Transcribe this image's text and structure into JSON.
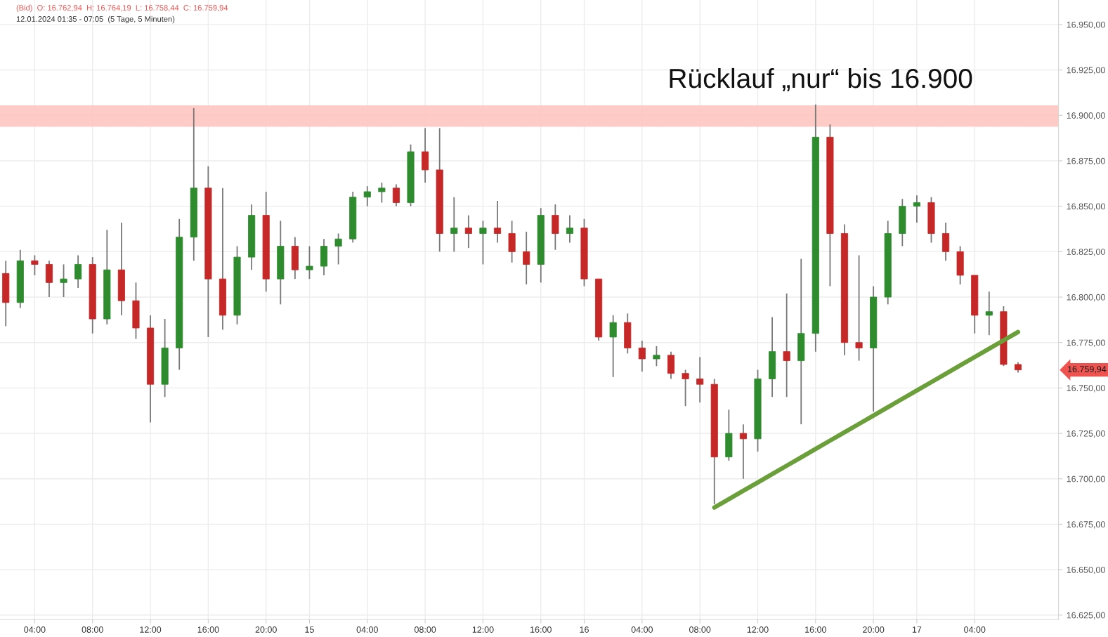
{
  "chart_data": {
    "type": "candlestick",
    "title": "(Bid)  O: 16.762,94  H: 16.764,19  L: 16.758,44  C: 16.759,94",
    "subtitle": "12.01.2024 01:35 - 07:05  (5 Tage, 5 Minuten)",
    "categories": [
      null,
      null,
      "04:00",
      null,
      null,
      null,
      "08:00",
      null,
      null,
      null,
      "12:00",
      null,
      null,
      null,
      "16:00",
      null,
      null,
      null,
      "20:00",
      null,
      null,
      "15",
      null,
      null,
      null,
      "04:00",
      null,
      null,
      null,
      "08:00",
      null,
      null,
      null,
      "12:00",
      null,
      null,
      null,
      "16:00",
      null,
      null,
      "16",
      null,
      null,
      null,
      "04:00",
      null,
      null,
      null,
      "08:00",
      null,
      null,
      null,
      "12:00",
      null,
      null,
      null,
      "16:00",
      null,
      null,
      null,
      "20:00",
      null,
      null,
      "17",
      null,
      null,
      null,
      "04:00",
      null,
      null,
      null
    ],
    "ohlc": [
      [
        16813,
        16820,
        16784,
        16797
      ],
      [
        16797,
        16826,
        16794,
        16820
      ],
      [
        16820,
        16823,
        16812,
        16818
      ],
      [
        16818,
        16820,
        16800,
        16808
      ],
      [
        16808,
        16818,
        16800,
        16810
      ],
      [
        16810,
        16823,
        16805,
        16818
      ],
      [
        16818,
        16822,
        16780,
        16788
      ],
      [
        16788,
        16837,
        16785,
        16815
      ],
      [
        16815,
        16841,
        16790,
        16798
      ],
      [
        16798,
        16808,
        16777,
        16783
      ],
      [
        16783,
        16790,
        16731,
        16752
      ],
      [
        16752,
        16788,
        16745,
        16772
      ],
      [
        16772,
        16843,
        16760,
        16833
      ],
      [
        16833,
        16904,
        16820,
        16860
      ],
      [
        16860,
        16872,
        16778,
        16810
      ],
      [
        16810,
        16860,
        16782,
        16790
      ],
      [
        16790,
        16828,
        16785,
        16822
      ],
      [
        16822,
        16851,
        16815,
        16845
      ],
      [
        16845,
        16858,
        16803,
        16810
      ],
      [
        16810,
        16842,
        16796,
        16828
      ],
      [
        16828,
        16833,
        16810,
        16815
      ],
      [
        16815,
        16828,
        16810,
        16817
      ],
      [
        16817,
        16832,
        16812,
        16828
      ],
      [
        16828,
        16835,
        16818,
        16832
      ],
      [
        16832,
        16858,
        16830,
        16855
      ],
      [
        16855,
        16861,
        16850,
        16858
      ],
      [
        16858,
        16863,
        16852,
        16860
      ],
      [
        16860,
        16862,
        16850,
        16852
      ],
      [
        16852,
        16884,
        16850,
        16880
      ],
      [
        16880,
        16893,
        16863,
        16870
      ],
      [
        16870,
        16893,
        16825,
        16835
      ],
      [
        16835,
        16855,
        16825,
        16838
      ],
      [
        16838,
        16845,
        16827,
        16835
      ],
      [
        16835,
        16842,
        16818,
        16838
      ],
      [
        16838,
        16853,
        16830,
        16835
      ],
      [
        16835,
        16842,
        16819,
        16825
      ],
      [
        16825,
        16836,
        16807,
        16818
      ],
      [
        16818,
        16849,
        16808,
        16845
      ],
      [
        16845,
        16851,
        16826,
        16835
      ],
      [
        16835,
        16845,
        16830,
        16838
      ],
      [
        16838,
        16843,
        16806,
        16810
      ],
      [
        16810,
        16810,
        16776,
        16778
      ],
      [
        16778,
        16790,
        16756,
        16786
      ],
      [
        16786,
        16791,
        16769,
        16772
      ],
      [
        16772,
        16776,
        16759,
        16766
      ],
      [
        16766,
        16773,
        16762,
        16768
      ],
      [
        16768,
        16770,
        16755,
        16758
      ],
      [
        16758,
        16760,
        16740,
        16755
      ],
      [
        16755,
        16767,
        16742,
        16752
      ],
      [
        16752,
        16755,
        16686,
        16712
      ],
      [
        16712,
        16738,
        16710,
        16725
      ],
      [
        16725,
        16730,
        16700,
        16722
      ],
      [
        16722,
        16760,
        16715,
        16755
      ],
      [
        16755,
        16789,
        16745,
        16770
      ],
      [
        16770,
        16802,
        16745,
        16765
      ],
      [
        16765,
        16821,
        16730,
        16780
      ],
      [
        16780,
        16906,
        16770,
        16888
      ],
      [
        16888,
        16895,
        16806,
        16835
      ],
      [
        16835,
        16840,
        16768,
        16775
      ],
      [
        16775,
        16823,
        16765,
        16772
      ],
      [
        16772,
        16806,
        16737,
        16800
      ],
      [
        16800,
        16842,
        16796,
        16835
      ],
      [
        16835,
        16854,
        16828,
        16850
      ],
      [
        16850,
        16856,
        16841,
        16852
      ],
      [
        16852,
        16855,
        16830,
        16835
      ],
      [
        16835,
        16841,
        16820,
        16825
      ],
      [
        16825,
        16828,
        16807,
        16812
      ],
      [
        16812,
        16812,
        16780,
        16790
      ],
      [
        16790,
        16803,
        16779,
        16792
      ],
      [
        16792,
        16795,
        16762,
        16762.94
      ],
      [
        16762.94,
        16764.19,
        16758.44,
        16759.94
      ]
    ],
    "color": "#787878",
    "colors": [
      "#c62828",
      "#2e8b2e",
      "#c62828",
      "#c62828",
      "#2e8b2e",
      "#2e8b2e",
      "#c62828",
      "#2e8b2e",
      "#c62828",
      "#c62828",
      "#c62828",
      "#2e8b2e",
      "#2e8b2e",
      "#2e8b2e",
      "#c62828",
      "#c62828",
      "#2e8b2e",
      "#2e8b2e",
      "#c62828",
      "#2e8b2e",
      "#c62828",
      "#2e8b2e",
      "#2e8b2e",
      "#2e8b2e",
      "#2e8b2e",
      "#2e8b2e",
      "#2e8b2e",
      "#c62828",
      "#2e8b2e",
      "#c62828",
      "#c62828",
      "#2e8b2e",
      "#c62828",
      "#2e8b2e",
      "#c62828",
      "#c62828",
      "#c62828",
      "#2e8b2e",
      "#c62828",
      "#2e8b2e",
      "#c62828",
      "#c62828",
      "#2e8b2e",
      "#c62828",
      "#c62828",
      "#2e8b2e",
      "#c62828",
      "#c62828",
      "#c62828",
      "#c62828",
      "#2e8b2e",
      "#c62828",
      "#2e8b2e",
      "#2e8b2e",
      "#c62828",
      "#2e8b2e",
      "#2e8b2e",
      "#c62828",
      "#c62828",
      "#c62828",
      "#2e8b2e",
      "#2e8b2e",
      "#2e8b2e",
      "#2e8b2e",
      "#c62828",
      "#c62828",
      "#c62828",
      "#c62828",
      "#2e8b2e",
      "#c62828",
      "#c62828"
    ],
    "series": [
      {
        "type": "line",
        "color": "#6a9f3a",
        "values": [
          null,
          null,
          null,
          null,
          null,
          null,
          null,
          null,
          null,
          null,
          null,
          null,
          null,
          null,
          null,
          null,
          null,
          null,
          null,
          null,
          null,
          null,
          null,
          null,
          null,
          null,
          null,
          null,
          null,
          null,
          null,
          null,
          null,
          null,
          null,
          null,
          null,
          null,
          null,
          null,
          null,
          null,
          null,
          null,
          null,
          null,
          null,
          null,
          null,
          16684.2,
          16688.8,
          16693.4,
          16698.0,
          16702.6,
          16707.2,
          16711.8,
          16716.4,
          16721.0,
          16725.6,
          16730.2,
          16734.8,
          16739.4,
          16744.0,
          16748.6,
          16753.2,
          16757.8,
          16762.4,
          16767.0,
          16771.6,
          16776.2,
          16780.8
        ]
      }
    ],
    "bands": [
      {
        "axis": "y",
        "from": 16893.7,
        "to": 16905.5,
        "label": "Rücklauf „nur“ bis 16.900",
        "color": "#ffc5c0"
      }
    ],
    "annotations": [
      "16.759,94"
    ],
    "ylim": [
      16622.6,
      16963.5
    ],
    "yticks": [
      {
        "value": 16625,
        "label": "16.625,00"
      },
      {
        "value": 16650,
        "label": "16.650,00"
      },
      {
        "value": 16675,
        "label": "16.675,00"
      },
      {
        "value": 16700,
        "label": "16.700,00"
      },
      {
        "value": 16725,
        "label": "16.725,00"
      },
      {
        "value": 16750,
        "label": "16.750,00"
      },
      {
        "value": 16775,
        "label": "16.775,00"
      },
      {
        "value": 16800,
        "label": "16.800,00"
      },
      {
        "value": 16825,
        "label": "16.825,00"
      },
      {
        "value": 16850,
        "label": "16.850,00"
      },
      {
        "value": 16875,
        "label": "16.875,00"
      },
      {
        "value": 16900,
        "label": "16.900,00"
      },
      {
        "value": 16925,
        "label": "16.925,00"
      },
      {
        "value": 16950,
        "label": "16.950,00"
      }
    ],
    "grid": true
  }
}
